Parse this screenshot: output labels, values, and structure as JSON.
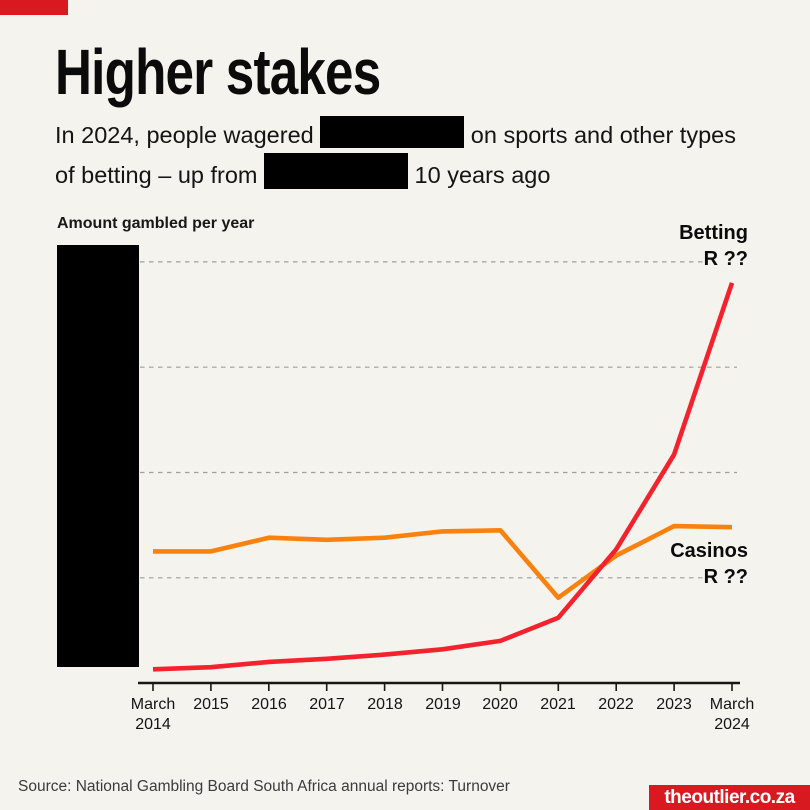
{
  "header": {
    "title": "Higher stakes",
    "subtitle_line1_before": "In 2024, people wagered",
    "subtitle_line1_after": "on sports and other types",
    "subtitle_line2_before": "of betting – up from",
    "subtitle_line2_after": "10 years ago"
  },
  "chart_data": {
    "type": "line",
    "title": "Amount gambled per year",
    "categories": [
      "March 2014",
      "2015",
      "2016",
      "2017",
      "2018",
      "2019",
      "2020",
      "2021",
      "2022",
      "2023",
      "March 2024"
    ],
    "x_ticks": [
      {
        "line1": "March",
        "line2": "2014"
      },
      {
        "line1": "2015",
        "line2": ""
      },
      {
        "line1": "2016",
        "line2": ""
      },
      {
        "line1": "2017",
        "line2": ""
      },
      {
        "line1": "2018",
        "line2": ""
      },
      {
        "line1": "2019",
        "line2": ""
      },
      {
        "line1": "2020",
        "line2": ""
      },
      {
        "line1": "2021",
        "line2": ""
      },
      {
        "line1": "2022",
        "line2": ""
      },
      {
        "line1": "2023",
        "line2": ""
      },
      {
        "line1": "March",
        "line2": "2024"
      }
    ],
    "series": [
      {
        "name": "Betting",
        "end_label": "Betting",
        "end_value": "R ??",
        "color": "#f3222d",
        "values": [
          0.13,
          0.15,
          0.2,
          0.23,
          0.27,
          0.32,
          0.4,
          0.62,
          1.27,
          2.17,
          3.8
        ]
      },
      {
        "name": "Casinos",
        "end_label": "Casinos",
        "end_value": "R ??",
        "color": "#f9820f",
        "values": [
          1.25,
          1.25,
          1.38,
          1.36,
          1.38,
          1.44,
          1.45,
          0.81,
          1.21,
          1.49,
          1.48
        ]
      }
    ],
    "y_axis_note": "y-axis value labels are hidden (blacked out); values measured in gridline-interval units",
    "ylim": [
      0,
      4.6
    ],
    "gridline_count": 4,
    "grid": "horizontal dashed",
    "legend_position": "inline end labels right of lines"
  },
  "footer": {
    "source": "Source: National Gambling Board South Africa annual reports: Turnover",
    "brand": "theoutlier.co.za"
  },
  "colors": {
    "background": "#f4f3ee",
    "brand_red": "#d8191f",
    "betting_line": "#f3222d",
    "casinos_line": "#f9820f",
    "gridline": "#a0a099"
  }
}
